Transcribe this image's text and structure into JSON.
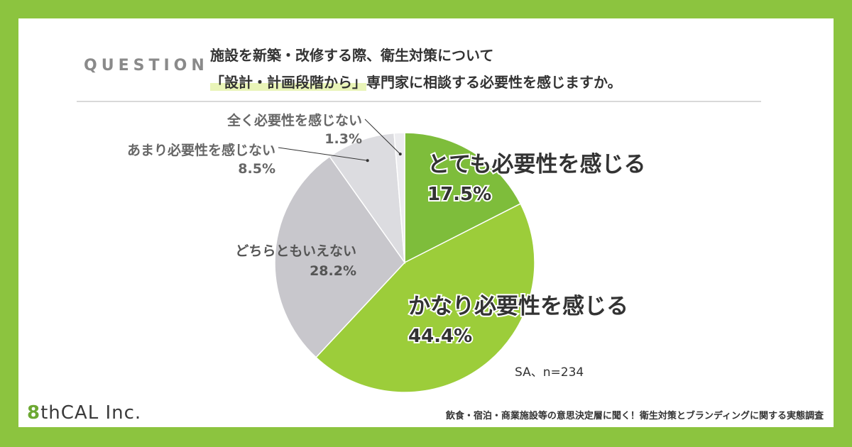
{
  "header": {
    "question_label": "QUESTION",
    "question_line1": "施設を新築・改修する際、衛生対策について",
    "question_line2_highlight": "「設計・計画段階から」",
    "question_line2_rest": "専門家に相談する必要性を感じますか。"
  },
  "chart_data": {
    "type": "pie",
    "note": "SA、n=234",
    "slices": [
      {
        "label": "とても必要性を感じる",
        "value": 17.5,
        "value_label": "17.5%",
        "color": "#7ebd3b"
      },
      {
        "label": "かなり必要性を感じる",
        "value": 44.4,
        "value_label": "44.4%",
        "color": "#9ccd3a"
      },
      {
        "label": "どちらともいえない",
        "value": 28.2,
        "value_label": "28.2%",
        "color": "#c8c7cc"
      },
      {
        "label": "あまり必要性を感じない",
        "value": 8.5,
        "value_label": "8.5%",
        "color": "#dcdce0"
      },
      {
        "label": "全く必要性を感じない",
        "value": 1.3,
        "value_label": "1.3%",
        "color": "#ececef"
      }
    ]
  },
  "footer": {
    "survey_title": "飲食・宿泊・商業施設等の意思決定層に聞く！衛生対策とブランディングに関する実態調査",
    "logo_number": "8",
    "logo_text": "thCAL",
    "logo_suffix": "Inc."
  }
}
